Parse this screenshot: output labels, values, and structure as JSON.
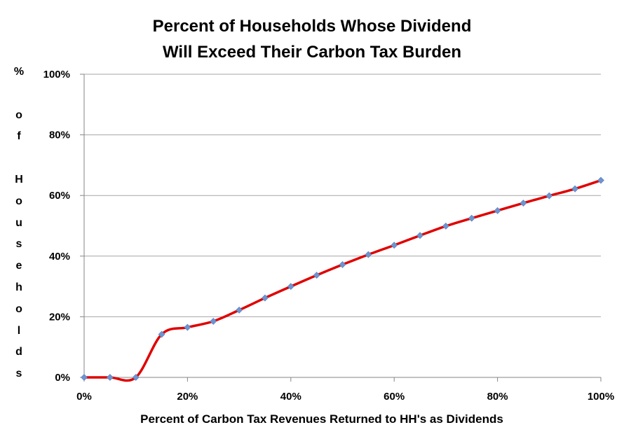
{
  "chart_data": {
    "type": "line",
    "title_lines": [
      "Percent of Households Whose Dividend",
      "Will Exceed Their Carbon Tax Burden"
    ],
    "xlabel": "Percent of Carbon Tax Revenues Returned to HH's as Dividends",
    "ylabel": "% of Households",
    "ylabel_chars": [
      "%",
      "",
      "o",
      "f",
      "",
      "H",
      "o",
      "u",
      "s",
      "e",
      "h",
      "o",
      "l",
      "d",
      "s"
    ],
    "x_ticks": [
      "0%",
      "20%",
      "40%",
      "60%",
      "80%",
      "100%"
    ],
    "y_ticks": [
      "0%",
      "20%",
      "40%",
      "60%",
      "80%",
      "100%"
    ],
    "xlim": [
      0,
      100
    ],
    "ylim": [
      0,
      100
    ],
    "grid": "horizontal",
    "legend": "none",
    "colors": {
      "line": "#e00000",
      "marker": "#6f94cf",
      "grid": "#a6a6a6",
      "axis": "#868686"
    },
    "x": [
      0,
      5,
      10,
      15,
      20,
      25,
      30,
      35,
      40,
      45,
      50,
      55,
      60,
      65,
      70,
      75,
      80,
      85,
      90,
      95,
      100
    ],
    "series": [
      {
        "values": [
          0,
          0,
          0,
          14.2,
          16.5,
          18.5,
          22.2,
          26.2,
          30,
          33.7,
          37.2,
          40.5,
          43.6,
          46.8,
          49.9,
          52.5,
          55,
          57.5,
          59.9,
          62.2,
          65
        ]
      }
    ]
  }
}
